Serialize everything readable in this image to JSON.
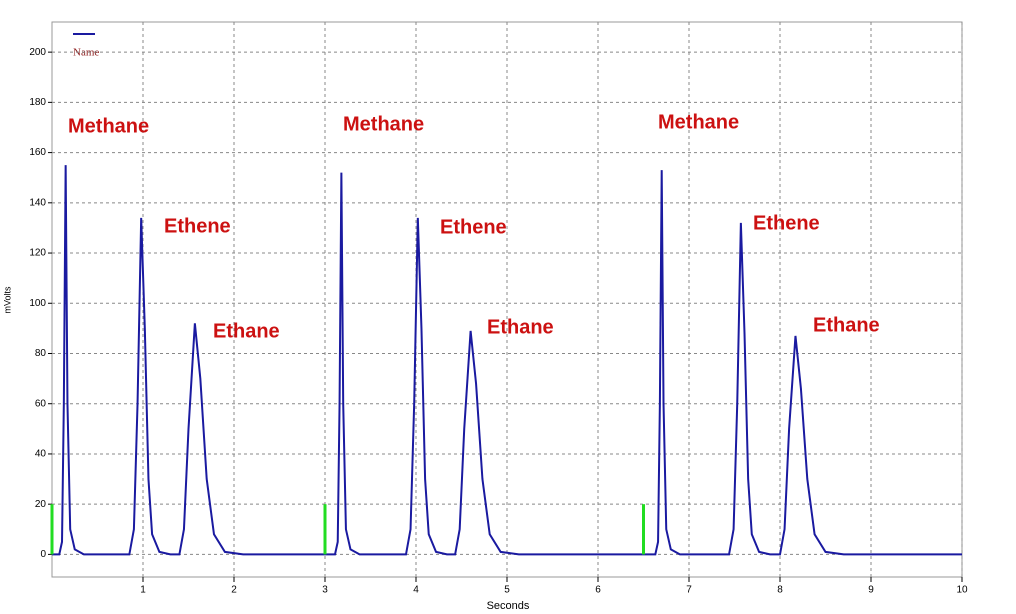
{
  "chart_data": {
    "type": "line",
    "xlabel": "Seconds",
    "ylabel": "mVolts",
    "xlim": [
      0,
      10
    ],
    "ylim": [
      -9,
      212
    ],
    "xticks": [
      1,
      2,
      3,
      4,
      5,
      6,
      7,
      8,
      9,
      10
    ],
    "yticks": [
      0,
      20,
      40,
      60,
      80,
      100,
      120,
      140,
      160,
      180,
      200
    ],
    "grid": true,
    "legend": "top-left",
    "annotations": [
      "Methane",
      "Ethene",
      "Ethane",
      "Methane",
      "Ethene",
      "Ethane",
      "Methane",
      "Ethene",
      "Ethane"
    ],
    "series": [
      {
        "name": "Name",
        "color": "#1a1aa0",
        "x": [
          0,
          0.08,
          0.11,
          0.13,
          0.15,
          0.17,
          0.2,
          0.25,
          0.35,
          0.85,
          0.9,
          0.94,
          0.98,
          1.02,
          1.06,
          1.1,
          1.18,
          1.3,
          1.4,
          1.45,
          1.5,
          1.57,
          1.63,
          1.7,
          1.78,
          1.9,
          2.1,
          3.11,
          3.14,
          3.16,
          3.18,
          3.2,
          3.23,
          3.28,
          3.38,
          3.89,
          3.94,
          3.98,
          4.02,
          4.06,
          4.1,
          4.14,
          4.22,
          4.34,
          4.43,
          4.48,
          4.53,
          4.6,
          4.66,
          4.73,
          4.81,
          4.93,
          5.13,
          6.63,
          6.66,
          6.68,
          6.7,
          6.72,
          6.75,
          6.8,
          6.9,
          7.44,
          7.49,
          7.53,
          7.57,
          7.61,
          7.65,
          7.69,
          7.77,
          7.89,
          8.0,
          8.05,
          8.1,
          8.17,
          8.23,
          8.3,
          8.38,
          8.5,
          8.7,
          10
        ],
        "values": [
          0,
          0,
          5,
          60,
          155,
          60,
          10,
          2,
          0,
          0,
          10,
          60,
          134,
          90,
          30,
          8,
          1,
          0,
          0,
          10,
          50,
          92,
          70,
          30,
          8,
          1,
          0,
          0,
          5,
          60,
          152,
          60,
          10,
          2,
          0,
          0,
          10,
          60,
          134,
          90,
          30,
          8,
          1,
          0,
          0,
          10,
          50,
          89,
          68,
          30,
          8,
          1,
          0,
          0,
          5,
          60,
          153,
          60,
          10,
          2,
          0,
          0,
          10,
          60,
          132,
          88,
          30,
          8,
          1,
          0,
          0,
          10,
          50,
          87,
          66,
          30,
          8,
          1,
          0,
          0
        ]
      },
      {
        "color": "#22dd22",
        "x": [
          0,
          0
        ],
        "values": [
          0,
          20
        ]
      },
      {
        "color": "#22dd22",
        "x": [
          3,
          3
        ],
        "values": [
          0,
          20
        ]
      },
      {
        "color": "#22dd22",
        "x": [
          6.5,
          6.5
        ],
        "values": [
          0,
          20
        ]
      }
    ]
  }
}
